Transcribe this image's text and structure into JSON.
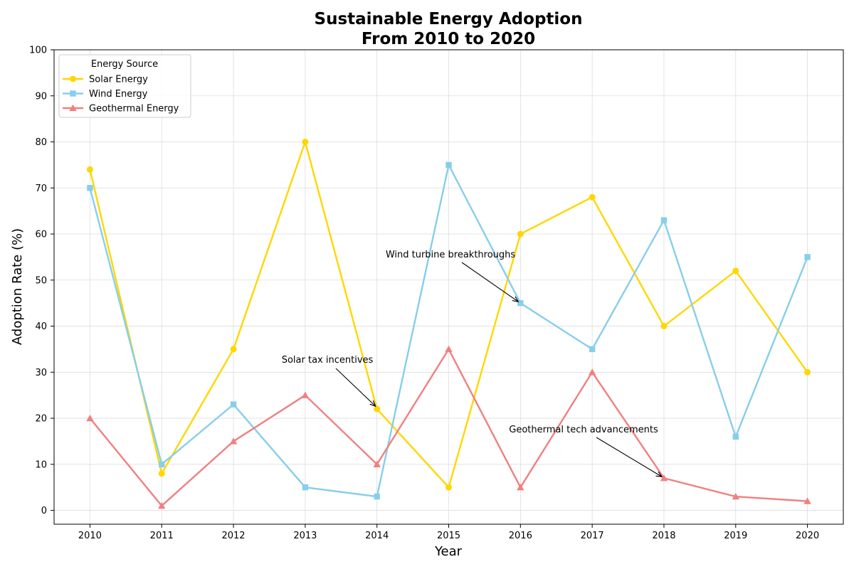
{
  "chart_data": {
    "type": "line",
    "title": [
      "Sustainable Energy Adoption",
      "From 2010 to 2020"
    ],
    "xlabel": "Year",
    "ylabel": "Adoption Rate (%)",
    "x": [
      2010,
      2011,
      2012,
      2013,
      2014,
      2015,
      2016,
      2017,
      2018,
      2019,
      2020
    ],
    "xlim": [
      2009.5,
      2020.5
    ],
    "ylim": [
      -3,
      100
    ],
    "yticks": [
      0,
      10,
      20,
      30,
      40,
      50,
      60,
      70,
      80,
      90,
      100
    ],
    "grid": true,
    "legend": {
      "title": "Energy Source",
      "placement": "top-left"
    },
    "series": [
      {
        "name": "Solar Energy",
        "color": "#FFD700",
        "marker": "circle",
        "values": [
          74,
          8,
          35,
          80,
          22,
          5,
          60,
          68,
          40,
          52,
          30
        ]
      },
      {
        "name": "Wind Energy",
        "color": "#87CEEB",
        "marker": "square",
        "values": [
          70,
          10,
          23,
          5,
          3,
          75,
          45,
          35,
          63,
          16,
          55
        ]
      },
      {
        "name": "Geothermal Energy",
        "color": "#F08080",
        "marker": "triangle",
        "values": [
          20,
          1,
          15,
          25,
          10,
          35,
          5,
          30,
          7,
          3,
          2
        ]
      }
    ],
    "annotations": [
      {
        "text": "Solar tax incentives",
        "point": [
          2014,
          22
        ],
        "text_at": [
          2013.3,
          32
        ]
      },
      {
        "text": "Wind turbine breakthroughs",
        "point": [
          2016,
          45
        ],
        "text_at": [
          215.97,
          55
        ]
      },
      {
        "text": "Geothermal tech advancements",
        "point": [
          2018,
          7
        ],
        "text_at": [
          2016.9,
          17
        ]
      }
    ]
  }
}
